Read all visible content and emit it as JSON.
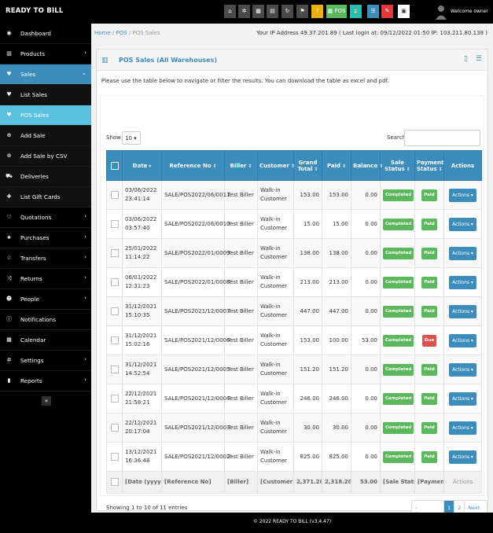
{
  "app": {
    "logo": "READY TO BILL",
    "welcome": "Welcome owner"
  },
  "topbar": {
    "buttons": [
      {
        "name": "home-icon",
        "glyph": "⌂",
        "color": "dark"
      },
      {
        "name": "gears-icon",
        "glyph": "✲",
        "color": "dark"
      },
      {
        "name": "calculator-icon",
        "glyph": "▦",
        "color": "dark"
      },
      {
        "name": "calendar-icon",
        "glyph": "▤",
        "color": "dark"
      },
      {
        "name": "refresh-icon",
        "glyph": "↻",
        "color": "dark"
      },
      {
        "name": "flag-icon",
        "glyph": "⚑",
        "color": "dark"
      },
      {
        "name": "alert-icon",
        "glyph": "!",
        "color": "yellow"
      },
      {
        "name": "pos-button",
        "glyph": "▦ POS",
        "color": "greenwide"
      },
      {
        "name": "hourglass-icon",
        "glyph": "⌛",
        "color": "teal"
      },
      {
        "name": "list-icon",
        "glyph": "☰",
        "color": "blue"
      },
      {
        "name": "edit-icon",
        "glyph": "✎",
        "color": "red"
      },
      {
        "name": "grid-icon",
        "glyph": "▣",
        "color": "white"
      }
    ]
  },
  "sidebar": {
    "items": [
      {
        "label": "Dashboard",
        "icon": "dashboard-icon",
        "glyph": "◉",
        "chev": "",
        "state": ""
      },
      {
        "label": "Products",
        "icon": "barcode-icon",
        "glyph": "▥",
        "chev": "›",
        "state": ""
      },
      {
        "label": "Sales",
        "icon": "heart-icon",
        "glyph": "♥",
        "chev": "⌄",
        "state": "active"
      },
      {
        "label": "List Sales",
        "icon": "heart-icon",
        "glyph": "♥",
        "chev": "",
        "state": "sub"
      },
      {
        "label": "POS Sales",
        "icon": "heart-icon",
        "glyph": "♥",
        "chev": "",
        "state": "current"
      },
      {
        "label": "Add Sale",
        "icon": "plus-circle-icon",
        "glyph": "⊕",
        "chev": "",
        "state": "sub"
      },
      {
        "label": "Add Sale by CSV",
        "icon": "plus-circle-icon",
        "glyph": "⊕",
        "chev": "",
        "state": "sub"
      },
      {
        "label": "Deliveries",
        "icon": "truck-icon",
        "glyph": "⛟",
        "chev": "",
        "state": "sub"
      },
      {
        "label": "List Gift Cards",
        "icon": "gift-icon",
        "glyph": "✚",
        "chev": "",
        "state": "sub"
      },
      {
        "label": "Quotations",
        "icon": "heart-outline-icon",
        "glyph": "♡",
        "chev": "›",
        "state": ""
      },
      {
        "label": "Purchases",
        "icon": "star-icon",
        "glyph": "★",
        "chev": "›",
        "state": ""
      },
      {
        "label": "Transfers",
        "icon": "star-outline-icon",
        "glyph": "☆",
        "chev": "›",
        "state": ""
      },
      {
        "label": "Returns",
        "icon": "random-icon",
        "glyph": "⤨",
        "chev": "›",
        "state": ""
      },
      {
        "label": "People",
        "icon": "users-icon",
        "glyph": "☻",
        "chev": "›",
        "state": ""
      },
      {
        "label": "Notifications",
        "icon": "info-icon",
        "glyph": "ⓘ",
        "chev": "",
        "state": ""
      },
      {
        "label": "Calendar",
        "icon": "calendar-icon",
        "glyph": "▦",
        "chev": "",
        "state": ""
      },
      {
        "label": "Settings",
        "icon": "cog-icon",
        "glyph": "✲",
        "chev": "›",
        "state": ""
      },
      {
        "label": "Reports",
        "icon": "bar-chart-icon",
        "glyph": "▮",
        "chev": "›",
        "state": ""
      }
    ],
    "collapse": "«"
  },
  "breadcrumb": {
    "home": "Home",
    "pos": "POS",
    "current": "POS Sales",
    "sep": "/"
  },
  "ip_info": "Your IP Address 49.37.201.89 ( Last login at: 09/12/2022 01:50 IP: 103.211.80.138 )",
  "panel": {
    "title": "POS Sales (All Warehouses)",
    "intro": "Please use the table below to navigate or filter the results. You can download the table as excel and pdf."
  },
  "table": {
    "show_label": "Show",
    "page_size": "10 ▾",
    "search_label": "Search",
    "headers": [
      "Date",
      "Reference No",
      "Biller",
      "Customer",
      "Grand Total",
      "Paid",
      "Balance",
      "Sale Status",
      "Payment Status",
      "Actions"
    ],
    "rows": [
      {
        "date": "03/06/2022 23:41:14",
        "ref": "SALE/POS2022/06/0011",
        "biller": "Test Biller",
        "customer": "Walk-in Customer",
        "total": "153.00",
        "paid": "153.00",
        "balance": "0.00",
        "sale_status": "Completed",
        "pay_status": "Paid"
      },
      {
        "date": "03/06/2022 03:57:40",
        "ref": "SALE/POS2022/06/0010",
        "biller": "Test Biller",
        "customer": "Walk-in Customer",
        "total": "15.00",
        "paid": "15.00",
        "balance": "0.00",
        "sale_status": "Completed",
        "pay_status": "Paid"
      },
      {
        "date": "25/01/2022 11:14:22",
        "ref": "SALE/POS2022/01/0009",
        "biller": "Test Biller",
        "customer": "Walk-in Customer",
        "total": "138.00",
        "paid": "138.00",
        "balance": "0.00",
        "sale_status": "Completed",
        "pay_status": "Paid"
      },
      {
        "date": "06/01/2022 12:31:23",
        "ref": "SALE/POS2022/01/0008",
        "biller": "Test Biller",
        "customer": "Walk-in Customer",
        "total": "213.00",
        "paid": "213.00",
        "balance": "0.00",
        "sale_status": "Completed",
        "pay_status": "Paid"
      },
      {
        "date": "31/12/2021 15:10:35",
        "ref": "SALE/POS2021/12/0007",
        "biller": "Test Biller",
        "customer": "Walk-in Customer",
        "total": "447.00",
        "paid": "447.00",
        "balance": "0.00",
        "sale_status": "Completed",
        "pay_status": "Paid"
      },
      {
        "date": "31/12/2021 15:02:16",
        "ref": "SALE/POS2021/12/0006",
        "biller": "Test Biller",
        "customer": "Walk-in Customer",
        "total": "153.00",
        "paid": "100.00",
        "balance": "53.00",
        "sale_status": "Completed",
        "pay_status": "Due"
      },
      {
        "date": "31/12/2021 14:52:54",
        "ref": "SALE/POS2021/12/0005",
        "biller": "Test Biller",
        "customer": "Walk-in Customer",
        "total": "151.20",
        "paid": "151.20",
        "balance": "0.00",
        "sale_status": "Completed",
        "pay_status": "Paid"
      },
      {
        "date": "22/12/2021 21:58:21",
        "ref": "SALE/POS2021/12/0004",
        "biller": "Test Biller",
        "customer": "Walk-in Customer",
        "total": "246.00",
        "paid": "246.00",
        "balance": "0.00",
        "sale_status": "Completed",
        "pay_status": "Paid"
      },
      {
        "date": "22/12/2021 20:17:04",
        "ref": "SALE/POS2021/12/0003",
        "biller": "Test Biller",
        "customer": "Walk-in Customer",
        "total": "30.00",
        "paid": "30.00",
        "balance": "0.00",
        "sale_status": "Completed",
        "pay_status": "Paid"
      },
      {
        "date": "13/12/2021 16:36:48",
        "ref": "SALE/POS2021/12/0002",
        "biller": "Test Biller",
        "customer": "Walk-in Customer",
        "total": "825.00",
        "paid": "825.00",
        "balance": "0.00",
        "sale_status": "Completed",
        "pay_status": "Paid"
      }
    ],
    "action_label": "Actions ▾",
    "footer": {
      "date": "[Date (yyyy-mm-dd)]",
      "ref": "[Reference No]",
      "biller": "[Biller]",
      "customer": "[Customer]",
      "total": "2,371.20",
      "paid": "2,318.20",
      "balance": "53.00",
      "sale_status": "[Sale Status]",
      "pay_status": "[Payment Status]",
      "actions": "Actions"
    }
  },
  "pagination": {
    "info": "Showing 1 to 10 of 11 entries",
    "prev": "‹ Previous",
    "pages": [
      "1",
      "2"
    ],
    "next": "Next ›"
  },
  "footer": {
    "text": "© 2022 READY TO BILL (v3.4.47)"
  }
}
